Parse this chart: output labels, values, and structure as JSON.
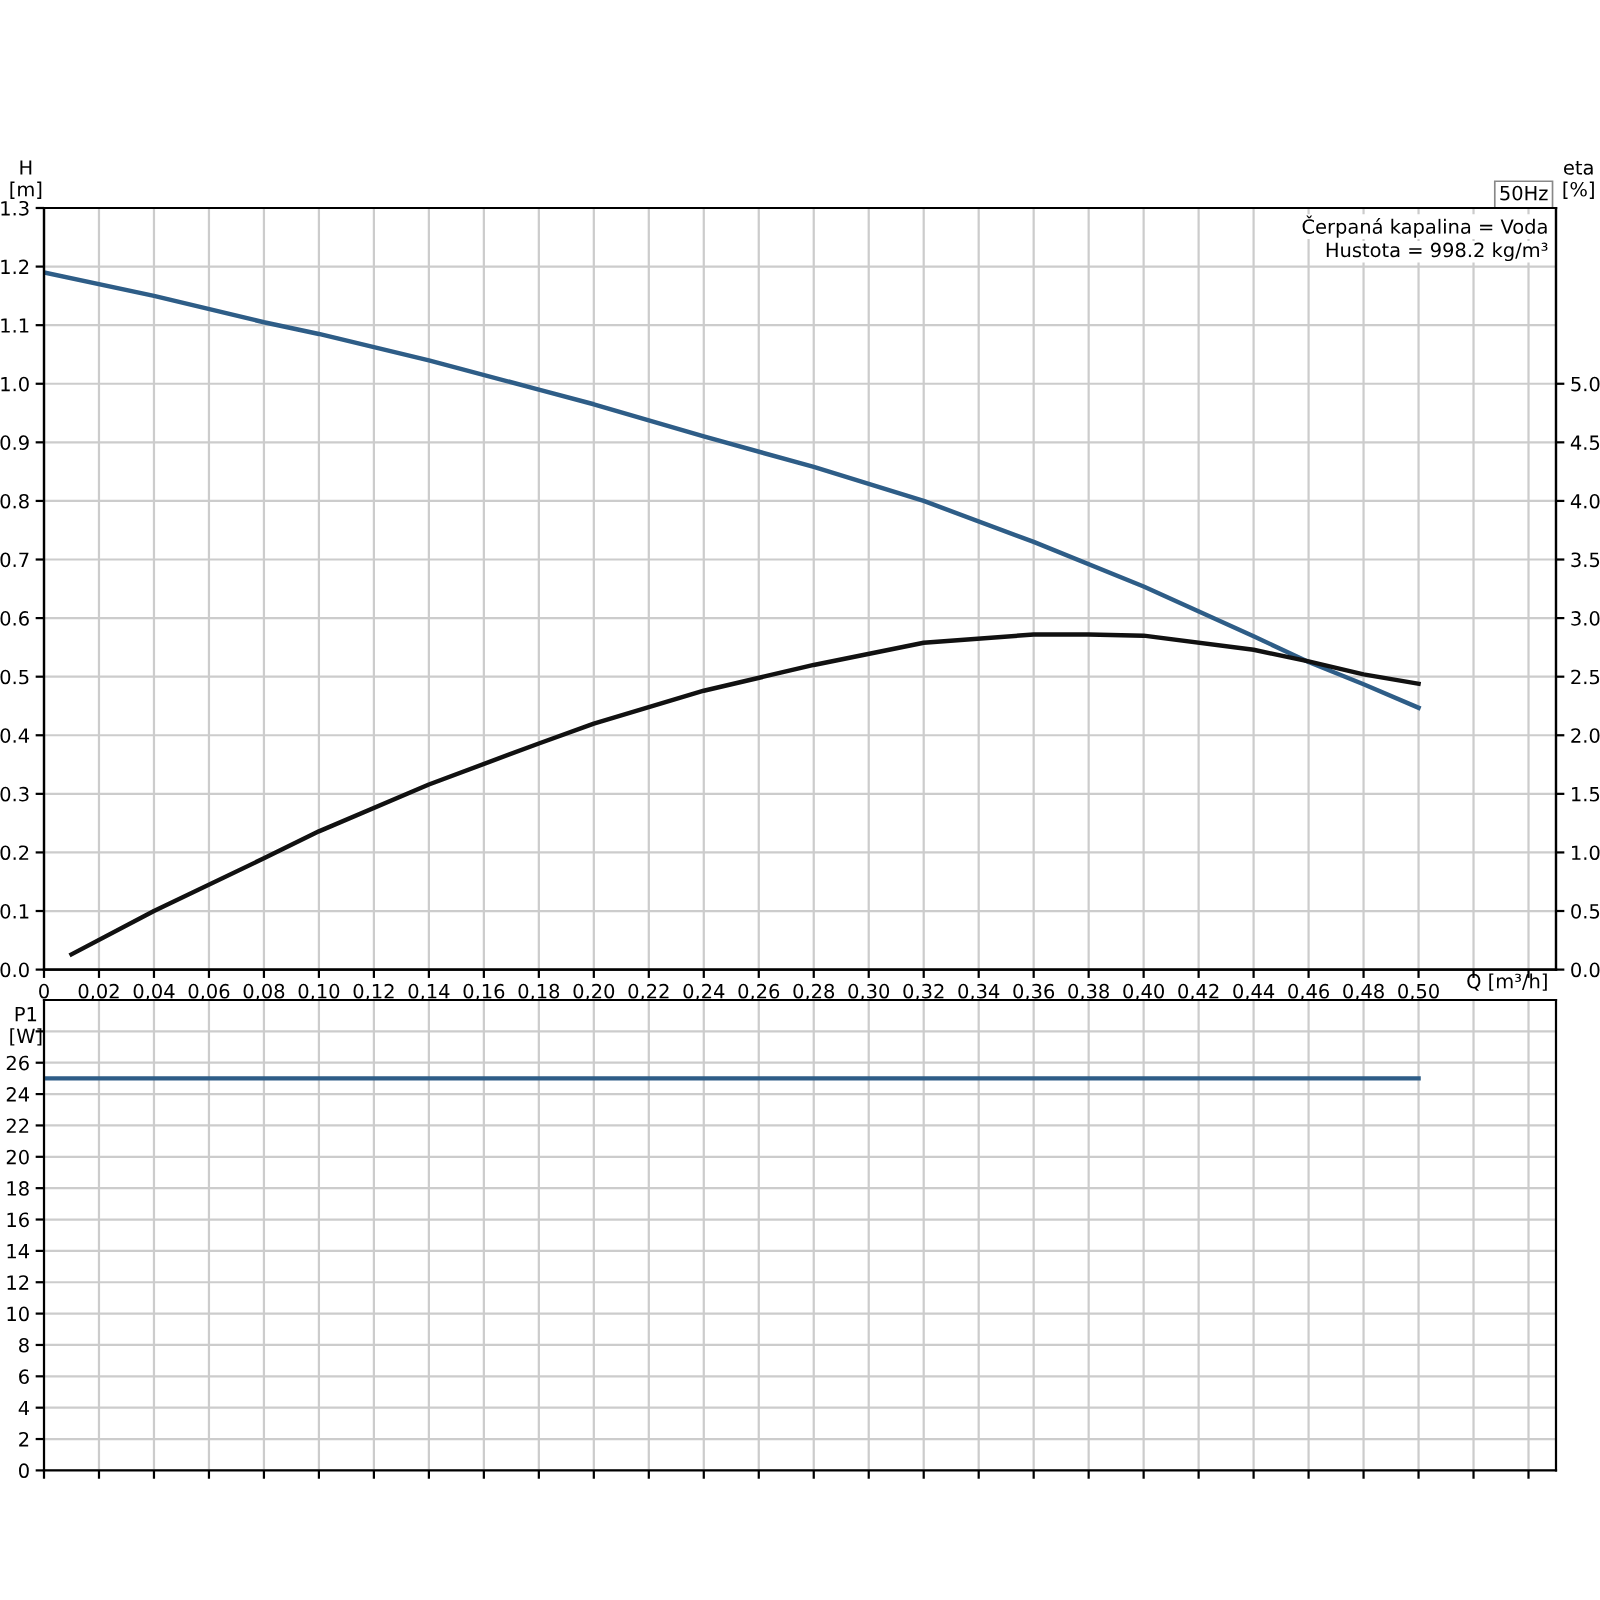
{
  "chart_data": [
    {
      "type": "line",
      "title": "50Hz",
      "xlabel": "Q [m³/h]",
      "ylabel": "H\n[m]",
      "y2label": "eta\n[%]",
      "annotations": [
        "Čerpaná kapalina = Voda",
        "Hustota = 998.2 kg/m³"
      ],
      "series": [
        {
          "color": "#2e5d87",
          "x": [
            0,
            0.04,
            0.08,
            0.1,
            0.14,
            0.18,
            0.2,
            0.24,
            0.28,
            0.32,
            0.36,
            0.4,
            0.44,
            0.46,
            0.48,
            0.5
          ],
          "values": [
            1.19,
            1.15,
            1.105,
            1.085,
            1.04,
            0.99,
            0.965,
            0.91,
            0.858,
            0.8,
            0.73,
            0.654,
            0.569,
            0.525,
            0.487,
            0.447
          ]
        },
        {
          "color": "#111111",
          "axis": "y2",
          "x": [
            0.01,
            0.04,
            0.08,
            0.1,
            0.14,
            0.18,
            0.2,
            0.24,
            0.28,
            0.32,
            0.36,
            0.38,
            0.4,
            0.44,
            0.46,
            0.48,
            0.5
          ],
          "values": [
            0.13,
            0.5,
            0.95,
            1.18,
            1.58,
            1.93,
            2.1,
            2.38,
            2.6,
            2.79,
            2.86,
            2.86,
            2.85,
            2.73,
            2.63,
            2.52,
            2.44
          ]
        }
      ],
      "xlim": [
        0,
        0.55
      ],
      "xticks": [
        {
          "value": 0,
          "label": "0"
        },
        {
          "value": 0.02,
          "label": "0,02"
        },
        {
          "value": 0.04,
          "label": "0,04"
        },
        {
          "value": 0.06,
          "label": "0,06"
        },
        {
          "value": 0.08,
          "label": "0,08"
        },
        {
          "value": 0.1,
          "label": "0,10"
        },
        {
          "value": 0.12,
          "label": "0,12"
        },
        {
          "value": 0.14,
          "label": "0,14"
        },
        {
          "value": 0.16,
          "label": "0,16"
        },
        {
          "value": 0.18,
          "label": "0,18"
        },
        {
          "value": 0.2,
          "label": "0,20"
        },
        {
          "value": 0.22,
          "label": "0,22"
        },
        {
          "value": 0.24,
          "label": "0,24"
        },
        {
          "value": 0.26,
          "label": "0,26"
        },
        {
          "value": 0.28,
          "label": "0,28"
        },
        {
          "value": 0.3,
          "label": "0,30"
        },
        {
          "value": 0.32,
          "label": "0,32"
        },
        {
          "value": 0.34,
          "label": "0,34"
        },
        {
          "value": 0.36,
          "label": "0,36"
        },
        {
          "value": 0.38,
          "label": "0,38"
        },
        {
          "value": 0.4,
          "label": "0,40"
        },
        {
          "value": 0.42,
          "label": "0,42"
        },
        {
          "value": 0.44,
          "label": "0,44"
        },
        {
          "value": 0.46,
          "label": "0,46"
        },
        {
          "value": 0.48,
          "label": "0,48"
        },
        {
          "value": 0.5,
          "label": "0,50"
        },
        {
          "value": 0.52,
          "label": null
        },
        {
          "value": 0.54,
          "label": null
        }
      ],
      "ylim": [
        0,
        1.3
      ],
      "yticks": [
        {
          "value": 0,
          "label": "0.0"
        },
        0.1,
        0.2,
        0.3,
        0.4,
        0.5,
        0.6,
        0.7,
        0.8,
        0.9,
        {
          "value": 1,
          "label": "1.0"
        },
        1.1,
        1.2,
        1.3
      ],
      "y2lim": [
        0,
        6.5
      ],
      "y2ticks": [
        {
          "value": 0,
          "label": "0.0"
        },
        0.5,
        {
          "value": 1,
          "label": "1.0"
        },
        1.5,
        {
          "value": 2,
          "label": "2.0"
        },
        2.5,
        {
          "value": 3,
          "label": "3.0"
        },
        3.5,
        {
          "value": 4,
          "label": "4.0"
        },
        4.5,
        {
          "value": 5,
          "label": "5.0"
        }
      ],
      "grid": true
    },
    {
      "type": "line",
      "ylabel": "P1\n[W]",
      "tick_labels": "y",
      "series": [
        {
          "color": "#2e5d87",
          "x": [
            0,
            0.5
          ],
          "values": [
            25,
            25
          ]
        }
      ],
      "xlim": [
        0,
        0.55
      ],
      "xticks": [
        0,
        0.02,
        0.04,
        0.06,
        0.08,
        0.1,
        0.12,
        0.14,
        0.16,
        0.18,
        0.2,
        0.22,
        0.24,
        0.26,
        0.28,
        0.3,
        0.32,
        0.34,
        0.36,
        0.38,
        0.4,
        0.42,
        0.44,
        0.46,
        0.48,
        0.5,
        0.52,
        0.54
      ],
      "ylim": [
        0,
        30
      ],
      "yticks": [
        0,
        2,
        4,
        6,
        8,
        10,
        12,
        14,
        16,
        18,
        20,
        22,
        24,
        26,
        {
          "value": 28,
          "label": null
        }
      ],
      "grid": true
    }
  ]
}
